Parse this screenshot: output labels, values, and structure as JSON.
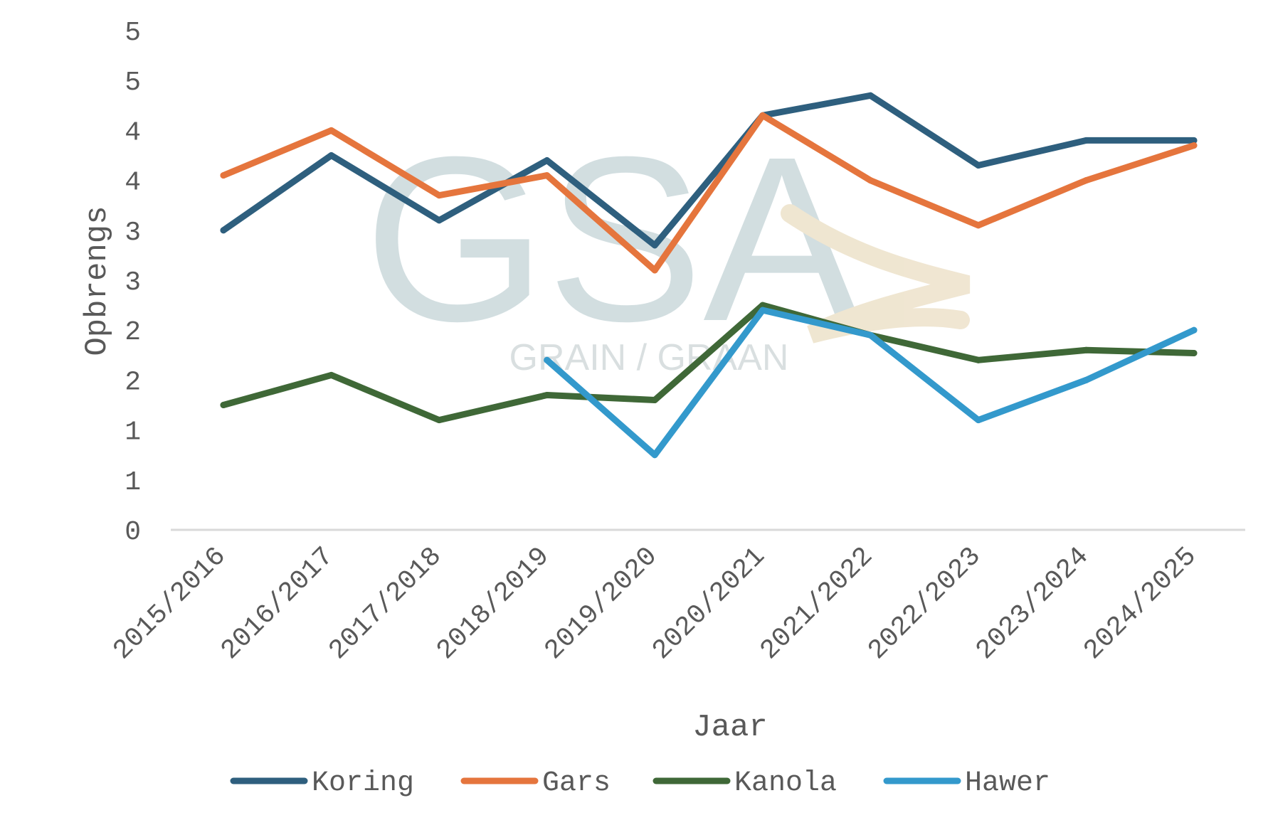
{
  "chart_data": {
    "type": "line",
    "title": "",
    "xlabel": "Jaar",
    "ylabel": "Opbrengs",
    "categories": [
      "2015/2016",
      "2016/2017",
      "2017/2018",
      "2018/2019",
      "2019/2020",
      "2020/2021",
      "2021/2022",
      "2022/2023",
      "2023/2024",
      "2024/2025"
    ],
    "y_tick_labels": [
      "0",
      "1",
      "1",
      "2",
      "2",
      "3",
      "3",
      "4",
      "4",
      "5",
      "5"
    ],
    "ylim": [
      0,
      5
    ],
    "grid": false,
    "legend_position": "bottom",
    "series": [
      {
        "name": "Koring",
        "color": "#2e5f7e",
        "values": [
          3.0,
          3.75,
          3.1,
          3.7,
          2.85,
          4.15,
          4.35,
          3.65,
          3.9,
          3.9
        ]
      },
      {
        "name": "Gars",
        "color": "#e5753d",
        "values": [
          3.55,
          4.0,
          3.35,
          3.55,
          2.6,
          4.15,
          3.5,
          3.05,
          3.5,
          3.85
        ]
      },
      {
        "name": "Kanola",
        "color": "#3f6837",
        "values": [
          1.25,
          1.55,
          1.1,
          1.35,
          1.3,
          2.25,
          1.95,
          1.7,
          1.8,
          1.77
        ]
      },
      {
        "name": "Hawer",
        "color": "#3399cc",
        "values": [
          null,
          null,
          null,
          1.7,
          0.75,
          2.2,
          1.95,
          1.1,
          1.5,
          2.0
        ]
      }
    ]
  },
  "watermark": {
    "logo_letters": "GSA",
    "caption": "GRAIN / GRAAN"
  }
}
